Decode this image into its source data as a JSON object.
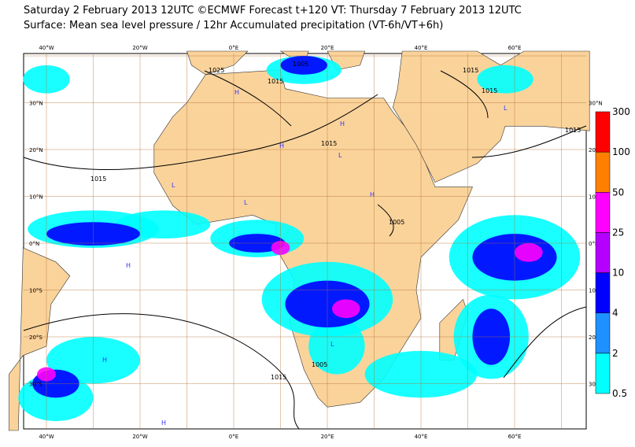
{
  "header": {
    "title_lines": [
      "Saturday 2 February 2013 12UTC ©ECMWF Forecast t+120 VT: Thursday 7 February 2013 12UTC",
      "Surface: Mean sea level pressure / 12hr Accumulated precipitation (VT-6h/VT+6h)"
    ]
  },
  "map": {
    "lon_labels": [
      "40°W",
      "20°W",
      "0°E",
      "20°E",
      "40°E",
      "60°E"
    ],
    "lat_labels": [
      "30°N",
      "20°N",
      "10°N",
      "0°N",
      "10°S",
      "20°S",
      "30°S"
    ],
    "isobar_labels": [
      "1025",
      "1005",
      "1015",
      "1015",
      "1015",
      "1015",
      "1015",
      "1015",
      "1005",
      "1005",
      "1015"
    ],
    "pressure_centres": [
      "H",
      "H",
      "L",
      "L",
      "H",
      "L",
      "H",
      "L",
      "H",
      "H",
      "H",
      "L"
    ]
  },
  "legend": {
    "levels": [
      0.5,
      2,
      4,
      10,
      25,
      50,
      100,
      300
    ],
    "colors": [
      "#00ffff",
      "#1e90ff",
      "#0000ff",
      "#b400ff",
      "#ff00ff",
      "#ff8000",
      "#ff0000"
    ]
  }
}
